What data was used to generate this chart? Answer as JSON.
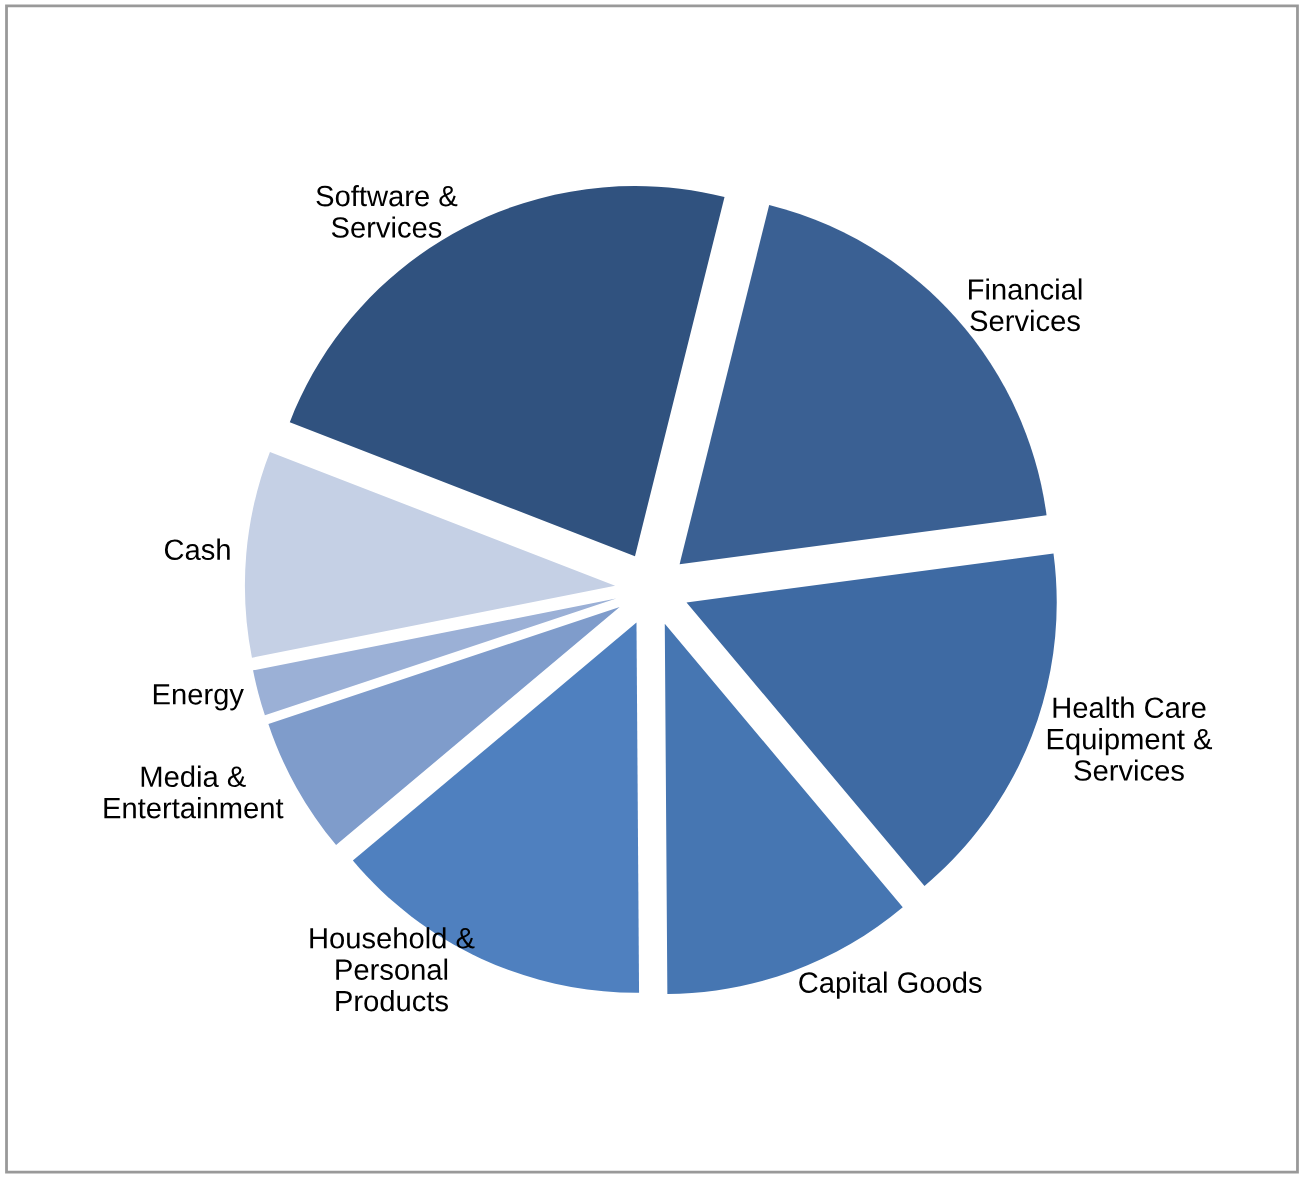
{
  "chart_data": {
    "type": "pie",
    "categories": [
      "Financial Services",
      "Health Care Equipment & Services",
      "Capital Goods",
      "Household & Personal Products",
      "Media & Entertainment",
      "Energy",
      "Cash",
      "Software & Services"
    ],
    "values": [
      19,
      16,
      11,
      14,
      6,
      2,
      9,
      23
    ],
    "colors": [
      "#3a6093",
      "#3e6aa3",
      "#4676b2",
      "#4f80bf",
      "#7f9ccb",
      "#9bb0d6",
      "#c5d0e5",
      "#30527f"
    ],
    "legend": false
  }
}
